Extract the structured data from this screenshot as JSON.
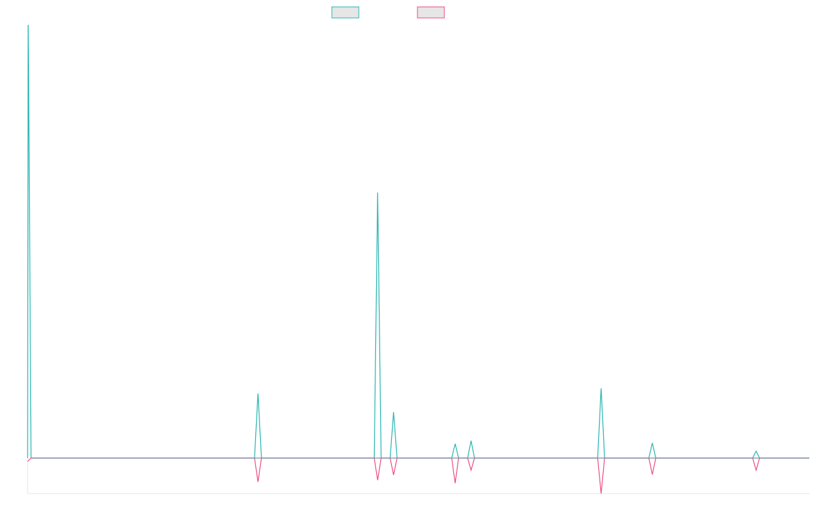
{
  "chart_data": {
    "type": "line",
    "title": "",
    "xlabel": "",
    "ylabel": "",
    "grid": false,
    "legend": {
      "placement": "top-center",
      "entries": [
        {
          "label": "",
          "color": "#26b5b0"
        },
        {
          "label": "",
          "color": "#ec4d7e"
        }
      ]
    },
    "ylim": [
      -0.082,
      1
    ],
    "xlim": [
      0,
      1130
    ],
    "baseline_color": "#7d8fa3",
    "series": [
      {
        "color": "#26b5b0",
        "points": [
          [
            0,
            0
          ],
          [
            1,
            1
          ],
          [
            5,
            0
          ],
          [
            328,
            0
          ],
          [
            333,
            0.149
          ],
          [
            338,
            0
          ],
          [
            501,
            0
          ],
          [
            506,
            0.613
          ],
          [
            511,
            0
          ],
          [
            524,
            0
          ],
          [
            529,
            0.106
          ],
          [
            534,
            0
          ],
          [
            613,
            0
          ],
          [
            618,
            0.033
          ],
          [
            623,
            0
          ],
          [
            636,
            0
          ],
          [
            641,
            0.04
          ],
          [
            646,
            0
          ],
          [
            824,
            0
          ],
          [
            829,
            0.161
          ],
          [
            834,
            0
          ],
          [
            898,
            0
          ],
          [
            903,
            0.035
          ],
          [
            908,
            0
          ],
          [
            1048,
            0
          ],
          [
            1053,
            0.016
          ],
          [
            1058,
            0
          ],
          [
            1130,
            0
          ]
        ]
      },
      {
        "color": "#ec4d7e",
        "points": [
          [
            0,
            -0.008
          ],
          [
            5,
            0
          ],
          [
            328,
            0
          ],
          [
            333,
            -0.055
          ],
          [
            338,
            0
          ],
          [
            501,
            0
          ],
          [
            506,
            -0.051
          ],
          [
            511,
            0
          ],
          [
            524,
            0
          ],
          [
            529,
            -0.039
          ],
          [
            534,
            0
          ],
          [
            613,
            0
          ],
          [
            618,
            -0.058
          ],
          [
            623,
            0
          ],
          [
            636,
            0
          ],
          [
            641,
            -0.028
          ],
          [
            646,
            0
          ],
          [
            824,
            0
          ],
          [
            829,
            -0.082
          ],
          [
            834,
            0
          ],
          [
            898,
            0
          ],
          [
            903,
            -0.038
          ],
          [
            908,
            0
          ],
          [
            1048,
            0
          ],
          [
            1053,
            -0.028
          ],
          [
            1058,
            0
          ],
          [
            1130,
            0
          ]
        ]
      }
    ]
  }
}
